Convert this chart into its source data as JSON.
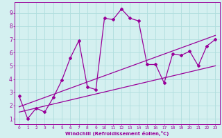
{
  "xlabel": "Windchill (Refroidissement éolien,°C)",
  "bg_color": "#d4f0f0",
  "grid_color": "#b0dede",
  "line_color": "#990099",
  "xlim": [
    -0.5,
    23.5
  ],
  "ylim": [
    0.6,
    9.8
  ],
  "xticks": [
    0,
    1,
    2,
    3,
    4,
    5,
    6,
    7,
    8,
    9,
    10,
    11,
    12,
    13,
    14,
    15,
    16,
    17,
    18,
    19,
    20,
    21,
    22,
    23
  ],
  "yticks": [
    1,
    2,
    3,
    4,
    5,
    6,
    7,
    8,
    9
  ],
  "curve_x": [
    0,
    1,
    2,
    3,
    4,
    5,
    6,
    7,
    8,
    9,
    10,
    11,
    12,
    13,
    14,
    15,
    16,
    17,
    18,
    19,
    20,
    21,
    22,
    23
  ],
  "curve_y": [
    2.7,
    1.0,
    1.8,
    1.5,
    2.6,
    3.9,
    5.6,
    6.9,
    3.4,
    3.2,
    8.6,
    8.5,
    9.3,
    8.6,
    8.4,
    5.1,
    5.1,
    3.7,
    5.9,
    5.8,
    6.1,
    5.0,
    6.5,
    7.0
  ],
  "trend1_x": [
    0,
    23
  ],
  "trend1_y": [
    1.5,
    5.0
  ],
  "trend2_x": [
    0,
    23
  ],
  "trend2_y": [
    1.9,
    7.3
  ]
}
